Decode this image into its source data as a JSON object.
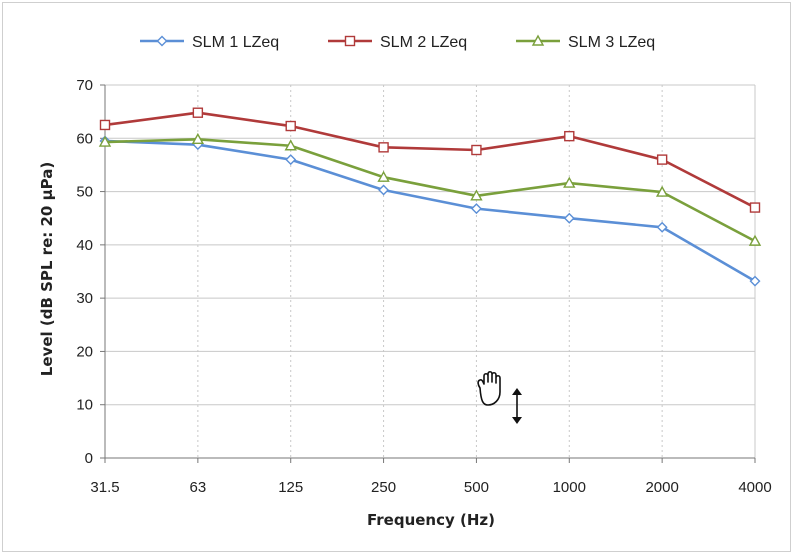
{
  "chart_data": {
    "type": "line",
    "title": "",
    "xlabel": "Frequency (Hz)",
    "ylabel": "Level (dB SPL re: 20 µPa)",
    "ylim": [
      0,
      70
    ],
    "yticks": [
      0,
      10,
      20,
      30,
      40,
      50,
      60,
      70
    ],
    "categories": [
      "31.5",
      "63",
      "125",
      "250",
      "500",
      "1000",
      "2000",
      "4000"
    ],
    "grid": true,
    "legend_position": "top",
    "series": [
      {
        "name": "SLM 1 LZeq",
        "color": "#5b8fd6",
        "marker": "diamond",
        "values": [
          59.5,
          58.8,
          56.0,
          50.3,
          46.8,
          45.0,
          43.3,
          33.2
        ]
      },
      {
        "name": "SLM 2 LZeq",
        "color": "#b03a3a",
        "marker": "square",
        "values": [
          62.5,
          64.8,
          62.3,
          58.3,
          57.8,
          60.4,
          56.0,
          47.0
        ]
      },
      {
        "name": "SLM 3 LZeq",
        "color": "#7aa03c",
        "marker": "triangle",
        "values": [
          59.3,
          59.8,
          58.6,
          52.7,
          49.2,
          51.6,
          49.9,
          40.7
        ]
      }
    ]
  },
  "cursor": {
    "hand_icon": "hand-grab-icon",
    "resize_icon": "vertical-resize-icon"
  }
}
